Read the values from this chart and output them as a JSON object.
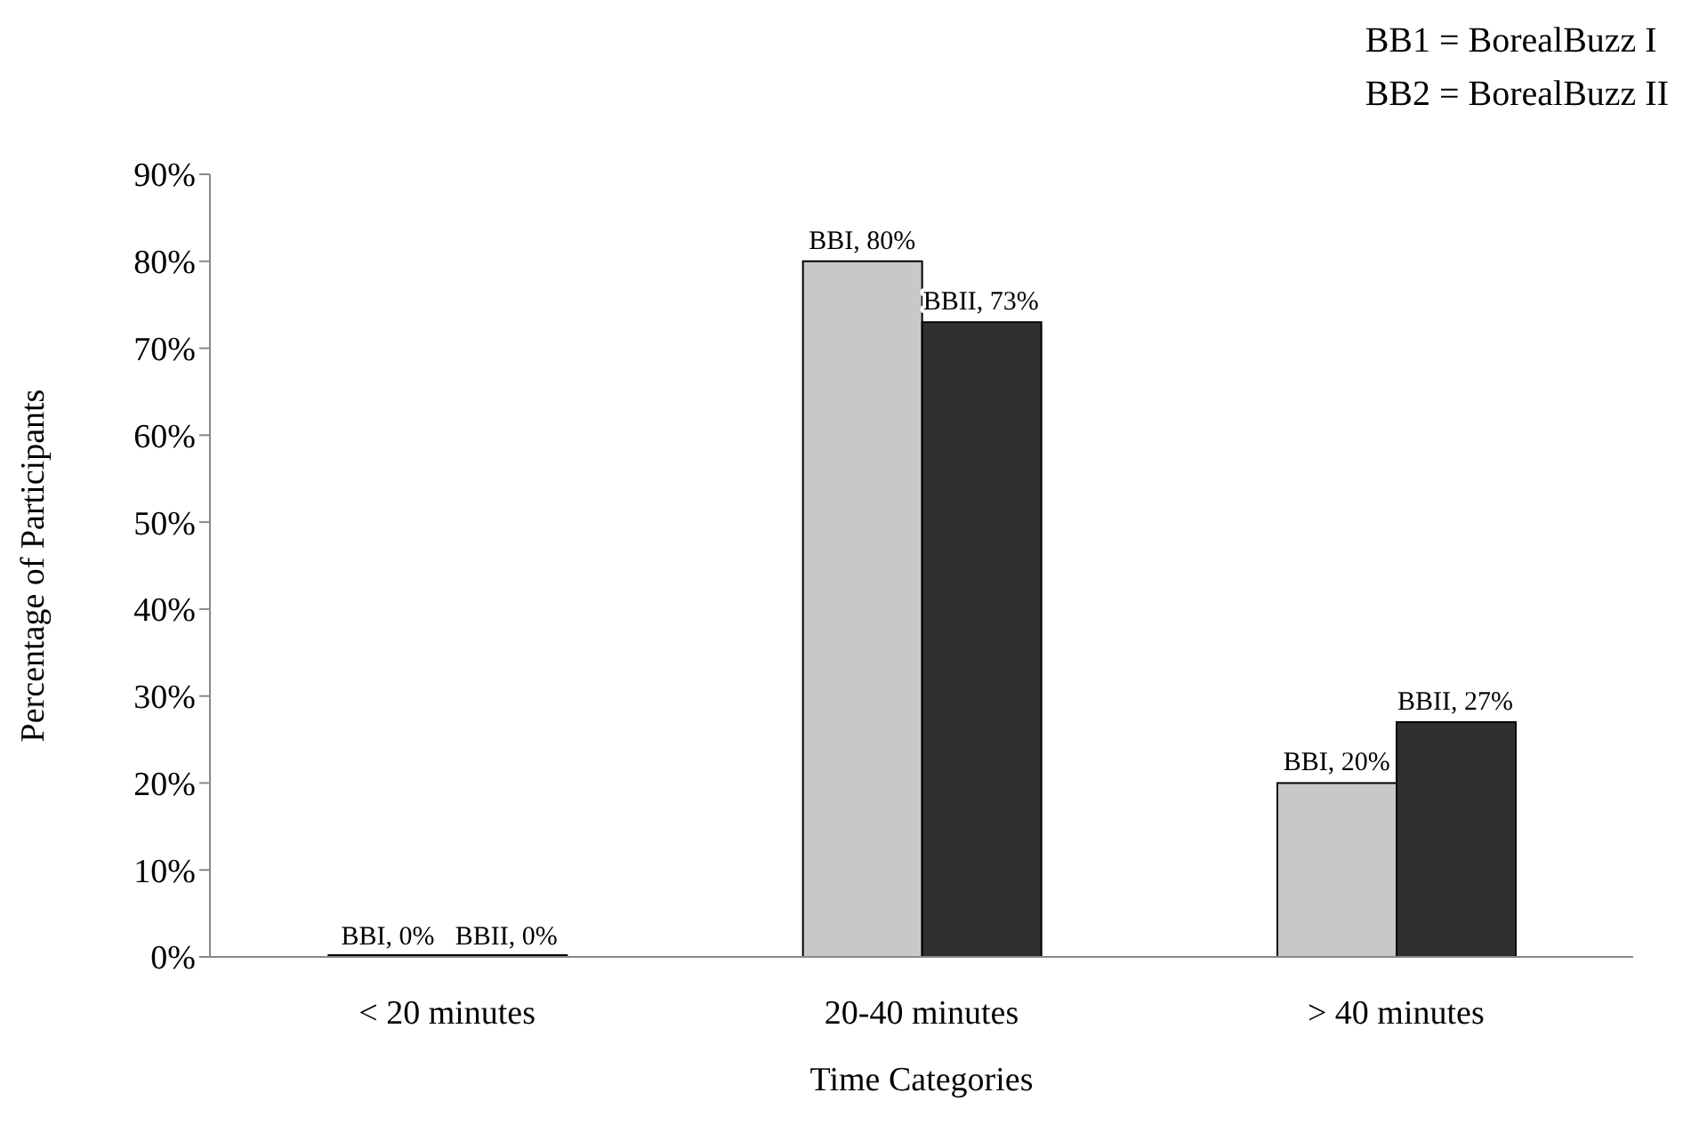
{
  "chart_data": {
    "type": "bar",
    "xlabel": "Time Categories",
    "ylabel": "Percentage of Participants",
    "annotations": [
      "BB1 = BorealBuzz I",
      "BB2 = BorealBuzz II"
    ],
    "categories": [
      "< 20 minutes",
      "20-40 minutes",
      "> 40 minutes"
    ],
    "series": [
      {
        "color": "#c8c8c8",
        "values": [
          0,
          80,
          20
        ],
        "value_labels": [
          "BBI, 0%",
          "BBI, 80%",
          "BBI, 20%"
        ]
      },
      {
        "color": "#303030",
        "values": [
          0,
          73,
          27
        ],
        "value_labels": [
          "BBII, 0%",
          "BBII, 73%",
          "BBII, 27%"
        ]
      }
    ],
    "ylim": [
      0,
      90
    ],
    "yticks": [
      {
        "value": 0,
        "label": "0%"
      },
      {
        "value": 10,
        "label": "10%"
      },
      {
        "value": 20,
        "label": "20%"
      },
      {
        "value": 30,
        "label": "30%"
      },
      {
        "value": 40,
        "label": "40%"
      },
      {
        "value": 50,
        "label": "50%"
      },
      {
        "value": 60,
        "label": "60%"
      },
      {
        "value": 70,
        "label": "70%"
      },
      {
        "value": 80,
        "label": "80%"
      },
      {
        "value": 90,
        "label": "90%"
      }
    ],
    "grid": false,
    "legend": false
  }
}
